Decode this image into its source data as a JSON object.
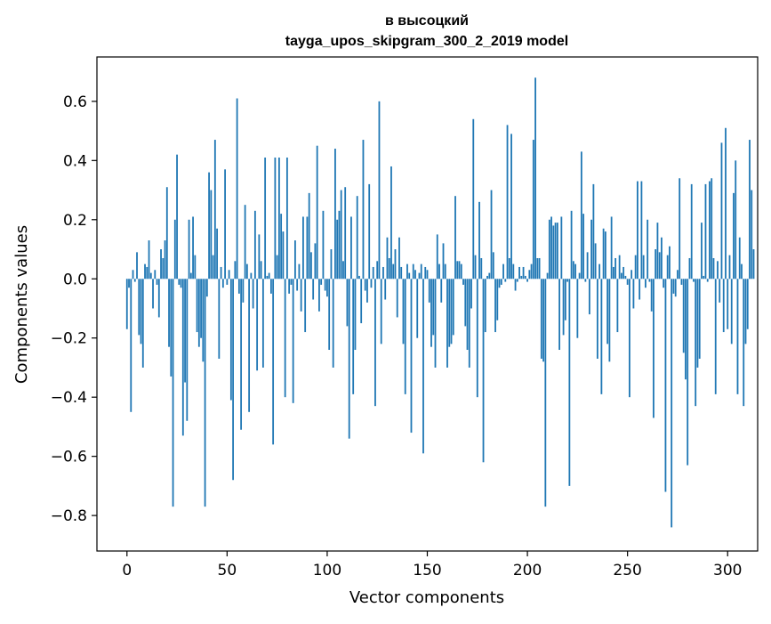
{
  "chart_data": {
    "type": "bar",
    "title_line1": "в высоцкий",
    "title_line2": "tayga_upos_skipgram_300_2_2019 model",
    "xlabel": "Vector components",
    "ylabel": "Components values",
    "xlim": [
      -15,
      315
    ],
    "ylim": [
      -0.92,
      0.75
    ],
    "x_ticks": [
      {
        "value": 0,
        "label": "0"
      },
      {
        "value": 50,
        "label": "50"
      },
      {
        "value": 100,
        "label": "100"
      },
      {
        "value": 150,
        "label": "150"
      },
      {
        "value": 200,
        "label": "200"
      },
      {
        "value": 250,
        "label": "250"
      },
      {
        "value": 300,
        "label": "300"
      }
    ],
    "y_ticks": [
      {
        "value": 0.6,
        "label": "0.6"
      },
      {
        "value": 0.4,
        "label": "0.4"
      },
      {
        "value": 0.2,
        "label": "0.2"
      },
      {
        "value": 0.0,
        "label": "0.0"
      },
      {
        "value": -0.2,
        "label": "−0.2"
      },
      {
        "value": -0.4,
        "label": "−0.4"
      },
      {
        "value": -0.6,
        "label": "−0.6"
      },
      {
        "value": -0.8,
        "label": "−0.8"
      }
    ],
    "bar_color": "#1f77b4",
    "grid": false,
    "values": [
      -0.17,
      -0.03,
      -0.45,
      0.03,
      -0.01,
      0.09,
      -0.19,
      -0.22,
      -0.3,
      0.05,
      0.04,
      0.13,
      0.02,
      -0.1,
      0.03,
      -0.02,
      -0.13,
      0.1,
      0.07,
      0.13,
      0.31,
      -0.23,
      -0.33,
      -0.77,
      0.2,
      0.42,
      -0.02,
      -0.03,
      -0.53,
      -0.35,
      -0.48,
      0.2,
      0.02,
      0.21,
      0.08,
      -0.18,
      -0.23,
      -0.2,
      -0.28,
      -0.77,
      -0.06,
      0.36,
      0.3,
      0.08,
      0.47,
      0.17,
      -0.27,
      0.04,
      -0.03,
      0.37,
      -0.02,
      0.03,
      -0.41,
      -0.68,
      0.06,
      0.61,
      -0.05,
      -0.51,
      -0.08,
      0.25,
      0.05,
      -0.45,
      0.02,
      -0.1,
      0.23,
      -0.31,
      0.15,
      0.06,
      -0.3,
      0.41,
      0.01,
      0.02,
      -0.05,
      -0.56,
      0.41,
      0.08,
      0.41,
      0.22,
      0.16,
      -0.4,
      0.41,
      -0.05,
      -0.02,
      -0.42,
      0.13,
      -0.04,
      0.05,
      -0.11,
      0.21,
      -0.18,
      0.21,
      0.29,
      0.09,
      -0.07,
      0.12,
      0.45,
      -0.11,
      -0.02,
      0.23,
      -0.04,
      -0.06,
      -0.24,
      0.1,
      -0.3,
      0.44,
      0.2,
      0.23,
      0.3,
      0.06,
      0.31,
      -0.16,
      -0.54,
      0.21,
      -0.39,
      -0.24,
      0.28,
      0.01,
      -0.15,
      0.47,
      -0.04,
      -0.08,
      0.32,
      -0.03,
      0.04,
      -0.43,
      0.06,
      0.6,
      -0.22,
      0.04,
      -0.07,
      0.14,
      0.07,
      0.38,
      0.05,
      0.1,
      -0.13,
      0.14,
      0.04,
      -0.22,
      -0.39,
      0.05,
      0.02,
      -0.52,
      0.05,
      0.03,
      -0.2,
      0.02,
      0.05,
      -0.59,
      0.04,
      0.03,
      -0.08,
      -0.23,
      -0.19,
      -0.3,
      0.15,
      0.05,
      -0.08,
      0.12,
      0.05,
      -0.3,
      -0.23,
      -0.22,
      -0.19,
      0.28,
      0.06,
      0.06,
      0.05,
      -0.02,
      -0.16,
      -0.24,
      -0.3,
      -0.1,
      0.54,
      0.08,
      -0.4,
      0.26,
      0.07,
      -0.62,
      -0.18,
      0.01,
      0.02,
      0.3,
      0.09,
      -0.18,
      -0.14,
      -0.03,
      -0.02,
      0.05,
      -0.01,
      0.52,
      0.07,
      0.49,
      0.05,
      -0.04,
      -0.01,
      0.04,
      0.01,
      0.04,
      0.01,
      -0.01,
      0.03,
      0.05,
      0.47,
      0.68,
      0.07,
      0.07,
      -0.27,
      -0.28,
      -0.77,
      0.02,
      0.2,
      0.21,
      0.18,
      0.19,
      0.19,
      -0.24,
      0.21,
      -0.19,
      -0.14,
      -0.01,
      -0.7,
      0.23,
      0.06,
      0.05,
      -0.2,
      0.02,
      0.43,
      0.22,
      -0.01,
      0.09,
      -0.12,
      0.2,
      0.32,
      0.12,
      -0.27,
      0.05,
      -0.39,
      0.17,
      0.16,
      -0.22,
      -0.28,
      0.21,
      0.04,
      0.07,
      -0.18,
      0.08,
      0.02,
      0.04,
      0.01,
      -0.02,
      -0.4,
      0.03,
      -0.1,
      0.08,
      0.33,
      -0.07,
      0.33,
      0.08,
      -0.03,
      0.2,
      -0.01,
      -0.11,
      -0.47,
      0.1,
      0.19,
      0.09,
      0.14,
      -0.03,
      -0.72,
      0.08,
      0.11,
      -0.84,
      -0.05,
      -0.06,
      0.03,
      0.34,
      -0.02,
      -0.25,
      -0.34,
      -0.63,
      0.07,
      0.32,
      -0.01,
      -0.43,
      -0.3,
      -0.27,
      0.19,
      0.01,
      0.32,
      -0.01,
      0.33,
      0.34,
      0.07,
      -0.39,
      0.06,
      -0.08,
      0.46,
      -0.18,
      0.51,
      -0.17,
      0.08,
      -0.22,
      0.29,
      0.4,
      -0.39,
      0.14,
      0.05,
      -0.43,
      -0.22,
      -0.17,
      0.47,
      0.3,
      0.1
    ]
  }
}
